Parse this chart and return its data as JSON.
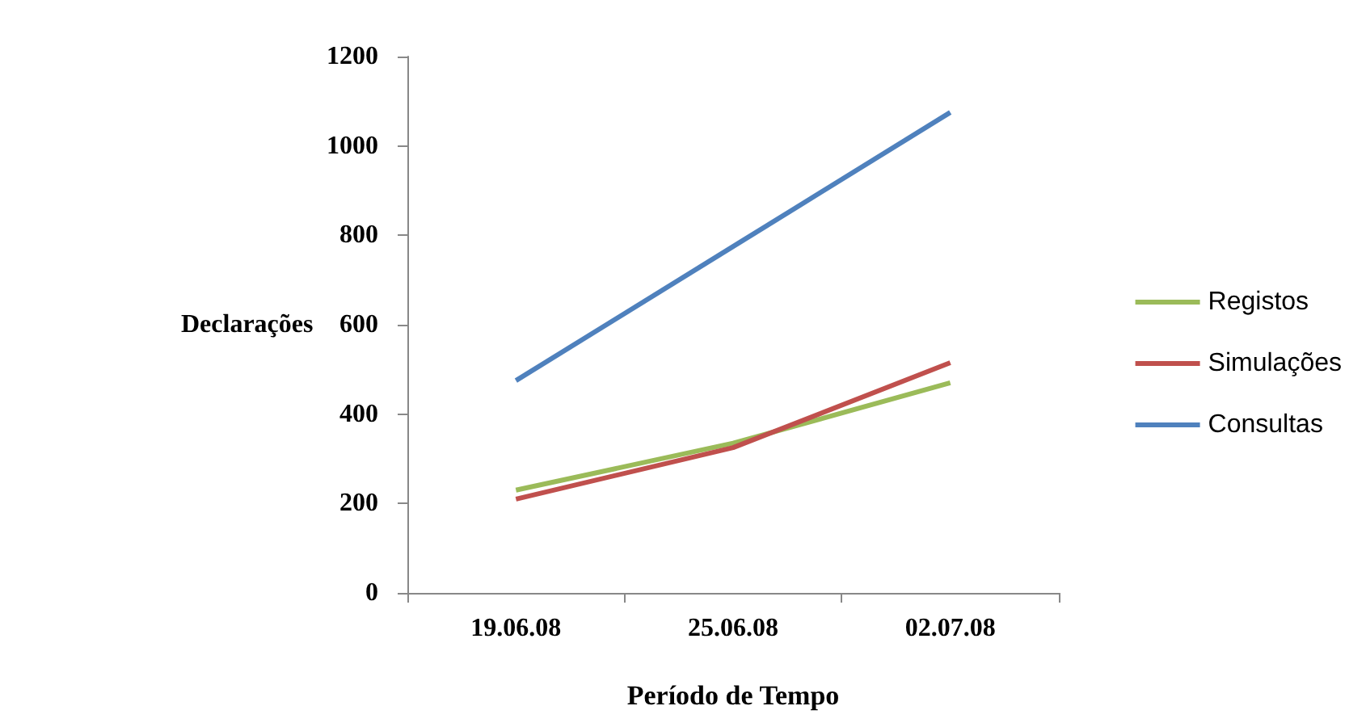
{
  "chart_data": {
    "type": "line",
    "xlabel": "Período de Tempo",
    "ylabel": "Declarações",
    "categories": [
      "19.06.08",
      "25.06.08",
      "02.07.08"
    ],
    "series": [
      {
        "name": "Registos",
        "color": "#9bbb59",
        "values": [
          230,
          335,
          470
        ]
      },
      {
        "name": "Simulações",
        "color": "#c0504d",
        "values": [
          210,
          325,
          515
        ]
      },
      {
        "name": "Consultas",
        "color": "#4f81bd",
        "values": [
          475,
          775,
          1075
        ]
      }
    ],
    "ylim": [
      0,
      1200
    ],
    "yticks": [
      0,
      200,
      400,
      600,
      800,
      1000,
      1200
    ],
    "grid": false,
    "legend": "right",
    "marker": "none",
    "line_style": "solid"
  }
}
